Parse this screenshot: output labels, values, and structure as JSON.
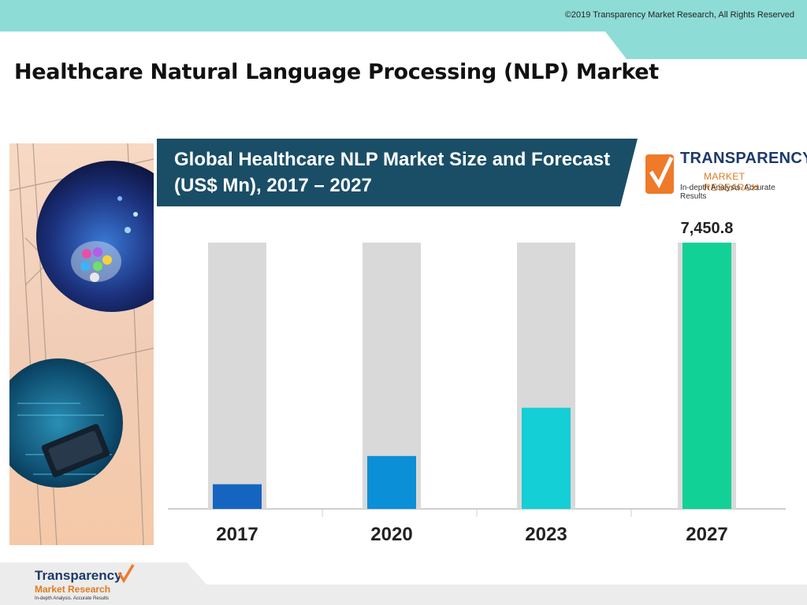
{
  "header": {
    "copyright": "©2019 Transparency Market Research, All Rights Reserved"
  },
  "slide": {
    "title": "Healthcare Natural Language Processing (NLP) Market"
  },
  "brand": {
    "name": "TRANSPARENCY",
    "sub": "MARKET RESEARCH",
    "tagline": "In-depth Analysis. Accurate Results"
  },
  "footer_logo": {
    "name": "Transparency",
    "sub": "Market Research",
    "tagline": "In-depth Analysis. Accurate Results"
  },
  "colors": {
    "header_band": "#8edcd6",
    "chart_header": "#1a4e66",
    "bar_background": "#d9d9d9",
    "bars": [
      "#1565c0",
      "#0b8fd6",
      "#14cfd6",
      "#11d196"
    ]
  },
  "chart_data": {
    "type": "bar",
    "title_lines": [
      "Global Healthcare NLP Market Size and Forecast",
      "(US$ Mn), 2017 – 2027"
    ],
    "categories": [
      "2017",
      "2020",
      "2023",
      "2027"
    ],
    "values": [
      690,
      1480,
      2830,
      7450.8
    ],
    "data_labels": [
      "",
      "",
      "",
      "7,450.8"
    ],
    "ylim": [
      0,
      7450.8
    ],
    "xlabel": "",
    "ylabel": "",
    "grid": false,
    "legend": "none"
  }
}
